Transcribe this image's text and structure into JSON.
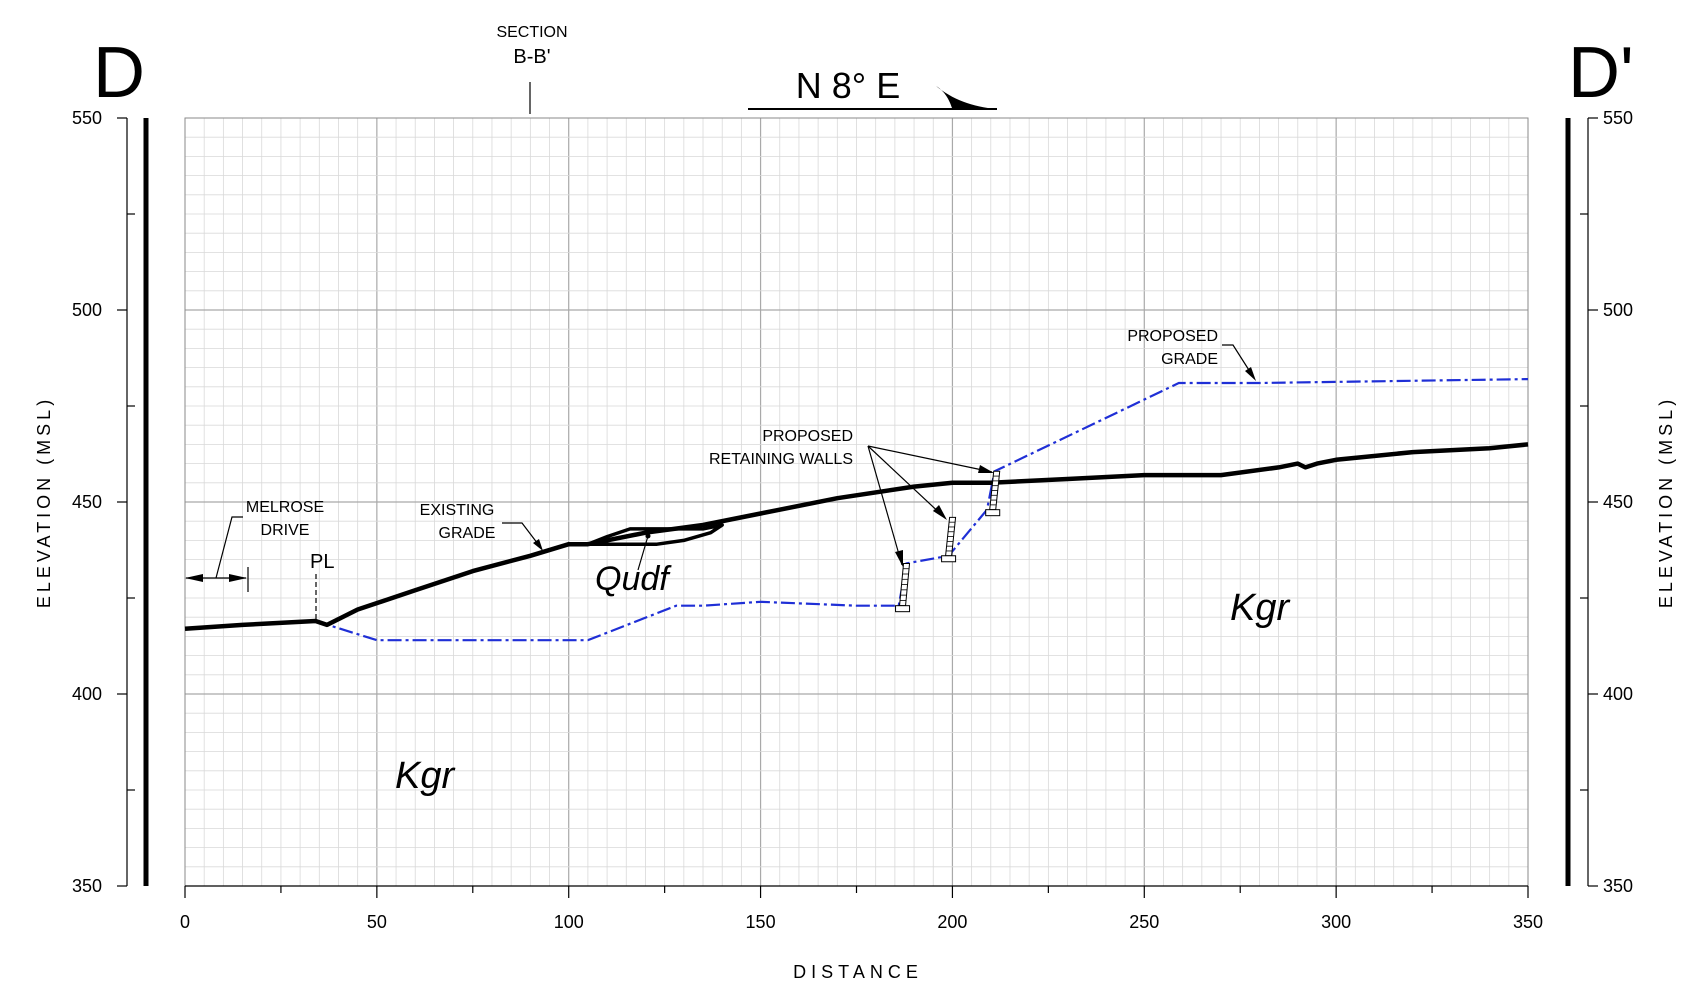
{
  "header": {
    "left_label": "D",
    "right_label": "D'",
    "section_ref_label": "SECTION",
    "section_ref_name": "B-B'",
    "bearing": "N 8° E"
  },
  "axes": {
    "xlabel": "DISTANCE",
    "ylabel_left": "ELEVATION (MSL)",
    "ylabel_right": "ELEVATION (MSL)",
    "xlim": [
      0,
      350
    ],
    "ylim": [
      350,
      550
    ],
    "x_ticks": [
      "0",
      "50",
      "100",
      "150",
      "200",
      "250",
      "300",
      "350"
    ],
    "y_ticks": [
      "550",
      "500",
      "450",
      "400",
      "350"
    ],
    "grid": true
  },
  "annotations": {
    "melrose": [
      "MELROSE",
      "DRIVE"
    ],
    "property_line": "PL",
    "existing_grade": [
      "EXISTING",
      "GRADE"
    ],
    "proposed_walls": [
      "PROPOSED",
      "RETAINING WALLS"
    ],
    "proposed_grade": [
      "PROPOSED",
      "GRADE"
    ],
    "unit_qudf": "Qudf",
    "unit_kgr_1": "Kgr",
    "unit_kgr_2": "Kgr"
  },
  "colors": {
    "existing_grade": "#000000",
    "proposed_grade": "#1f2fd6",
    "grid_minor": "#d9d9d9",
    "grid_major": "#a9a9a9"
  },
  "chart_data": {
    "type": "line",
    "xlabel": "DISTANCE",
    "ylabel": "ELEVATION (MSL)",
    "xlim": [
      0,
      350
    ],
    "ylim": [
      350,
      550
    ],
    "series": [
      {
        "name": "EXISTING GRADE",
        "x": [
          0,
          15,
          34,
          37,
          45,
          60,
          75,
          90,
          100,
          105,
          120,
          135,
          150,
          170,
          190,
          200,
          210,
          230,
          250,
          262,
          270,
          285,
          290,
          292,
          295,
          300,
          320,
          340,
          350
        ],
        "y": [
          417,
          418,
          419,
          418,
          422,
          427,
          432,
          436,
          439,
          439,
          442,
          444,
          447,
          451,
          454,
          455,
          455,
          456,
          457,
          457,
          457,
          459,
          460,
          459,
          460,
          461,
          463,
          464,
          465
        ]
      },
      {
        "name": "PROPOSED GRADE",
        "x": [
          34,
          50,
          60,
          105,
          128,
          135,
          150,
          175,
          186,
          188,
          199,
          209,
          211,
          259,
          280,
          350
        ],
        "y": [
          419,
          414,
          414,
          414,
          423,
          423,
          424,
          423,
          423,
          434,
          436,
          448,
          458,
          481,
          481,
          482
        ]
      },
      {
        "name": "Qudf",
        "x": [
          105,
          110,
          116,
          122,
          128,
          135,
          140,
          137,
          130,
          123,
          116,
          109,
          105
        ],
        "y": [
          439,
          441,
          443,
          443,
          443,
          443,
          444,
          442,
          440,
          439,
          439,
          439,
          439
        ]
      }
    ],
    "walls": [
      {
        "x": 187,
        "bottom": 423,
        "top": 434
      },
      {
        "x": 199,
        "bottom": 436,
        "top": 446
      },
      {
        "x": 210.5,
        "bottom": 448,
        "top": 458
      }
    ]
  }
}
